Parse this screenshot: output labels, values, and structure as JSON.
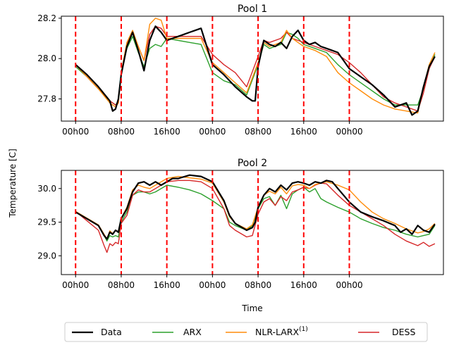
{
  "colors": {
    "Data": "#000000",
    "ARX": "#2ca02c",
    "NLR-LARX(1)": "#ff8c0a",
    "DESS": "#d62728",
    "vline": "#ff0000"
  },
  "shared": {
    "xlabel": "Time",
    "ylabel": "Temperature [C]",
    "x_ticks": [
      0,
      8,
      16,
      24,
      32,
      40,
      48
    ],
    "x_tick_labels": [
      "00h00",
      "08h00",
      "16h00",
      "00h00",
      "08h00",
      "16h00",
      "00h00"
    ],
    "x_range_hours": [
      -2.5,
      64.5
    ],
    "vlines_hours": [
      0,
      8,
      16,
      24,
      32,
      40,
      48
    ]
  },
  "legend": {
    "entries": [
      {
        "name": "Data",
        "sup": ""
      },
      {
        "name": "ARX",
        "sup": ""
      },
      {
        "name": "NLR-LARX",
        "sup": "(1)"
      },
      {
        "name": "DESS",
        "sup": ""
      }
    ]
  },
  "chart_data": [
    {
      "type": "line",
      "title": "Pool 1",
      "ylim": [
        27.69,
        28.21
      ],
      "y_ticks": [
        27.8,
        28.0,
        28.2
      ],
      "y_tick_labels": [
        "27.8",
        "28.0",
        "28.2"
      ],
      "series": [
        {
          "name": "Data",
          "x": [
            0,
            2,
            4,
            6,
            6.5,
            7,
            7.5,
            8,
            9,
            10,
            11,
            12,
            13,
            14,
            15,
            16,
            17,
            18,
            19,
            20,
            21,
            22,
            23,
            24,
            26,
            28,
            30,
            31,
            31.5,
            32,
            33,
            34,
            35,
            36,
            37,
            38,
            39,
            40,
            41,
            42,
            43,
            44,
            45,
            46,
            47,
            48,
            50,
            52,
            54,
            55,
            56,
            57,
            58,
            59,
            60,
            61,
            62,
            63
          ],
          "y": [
            27.97,
            27.92,
            27.86,
            27.79,
            27.74,
            27.75,
            27.8,
            27.92,
            28.06,
            28.13,
            28.04,
            27.94,
            28.09,
            28.16,
            28.13,
            28.09,
            28.1,
            28.11,
            28.12,
            28.13,
            28.14,
            28.15,
            28.06,
            27.97,
            27.92,
            27.86,
            27.81,
            27.79,
            27.79,
            27.96,
            28.09,
            28.07,
            28.06,
            28.08,
            28.05,
            28.11,
            28.14,
            28.09,
            28.07,
            28.08,
            28.06,
            28.05,
            28.04,
            28.03,
            27.99,
            27.95,
            27.91,
            27.87,
            27.82,
            27.79,
            27.76,
            27.77,
            27.78,
            27.72,
            27.74,
            27.86,
            27.96,
            28.01
          ]
        },
        {
          "name": "ARX",
          "x": [
            0,
            2,
            4,
            6,
            7,
            7.5,
            8,
            9,
            10,
            11,
            12,
            13,
            14,
            15,
            16,
            18,
            20,
            22,
            24,
            26,
            28,
            30,
            32,
            33,
            34,
            36,
            37,
            38,
            39,
            40,
            42,
            44,
            46,
            48,
            50,
            52,
            54,
            56,
            58,
            60,
            61,
            62,
            63
          ],
          "y": [
            27.96,
            27.91,
            27.85,
            27.79,
            27.77,
            27.79,
            27.93,
            28.05,
            28.11,
            28.03,
            27.96,
            28.05,
            28.07,
            28.06,
            28.1,
            28.09,
            28.08,
            28.07,
            27.93,
            27.89,
            27.87,
            27.82,
            27.97,
            28.07,
            28.05,
            28.07,
            28.13,
            28.12,
            28.1,
            28.07,
            28.05,
            28.03,
            27.97,
            27.92,
            27.88,
            27.84,
            27.8,
            27.77,
            27.77,
            27.77,
            27.85,
            27.95,
            28.02
          ]
        },
        {
          "name": "NLR-LARX(1)",
          "x": [
            0,
            2,
            4,
            6,
            7,
            7.5,
            8,
            9,
            10,
            11,
            12,
            13,
            14,
            15,
            16,
            18,
            20,
            22,
            24,
            26,
            28,
            30,
            32,
            33,
            34,
            36,
            37,
            38,
            39,
            40,
            42,
            44,
            46,
            48,
            50,
            52,
            54,
            56,
            58,
            60,
            61,
            62,
            63
          ],
          "y": [
            27.97,
            27.91,
            27.85,
            27.78,
            27.76,
            27.78,
            27.93,
            28.08,
            28.14,
            28.06,
            27.99,
            28.17,
            28.2,
            28.19,
            28.1,
            28.1,
            28.1,
            28.1,
            27.98,
            27.93,
            27.88,
            27.83,
            27.98,
            28.08,
            28.06,
            28.08,
            28.14,
            28.1,
            28.08,
            28.06,
            28.04,
            28.01,
            27.93,
            27.88,
            27.84,
            27.8,
            27.77,
            27.75,
            27.74,
            27.73,
            27.86,
            27.97,
            28.03
          ]
        },
        {
          "name": "DESS",
          "x": [
            0,
            2,
            4,
            6,
            7,
            7.5,
            8,
            9,
            10,
            11,
            12,
            13,
            14,
            15,
            16,
            18,
            20,
            22,
            24,
            26,
            28,
            30,
            32,
            33,
            34,
            36,
            37,
            38,
            39,
            40,
            42,
            44,
            46,
            48,
            50,
            52,
            54,
            56,
            58,
            60,
            61,
            62,
            63
          ],
          "y": [
            27.97,
            27.91,
            27.85,
            27.79,
            27.77,
            27.78,
            27.93,
            28.07,
            28.13,
            28.06,
            27.99,
            28.12,
            28.16,
            28.15,
            28.11,
            28.11,
            28.11,
            28.11,
            28.02,
            27.97,
            27.93,
            27.86,
            28.01,
            28.09,
            28.08,
            28.1,
            28.13,
            28.1,
            28.09,
            28.08,
            28.06,
            28.04,
            28.02,
            27.98,
            27.93,
            27.87,
            27.81,
            27.78,
            27.76,
            27.74,
            27.83,
            27.95,
            28.01
          ]
        }
      ]
    },
    {
      "type": "line",
      "title": "Pool 2",
      "ylim": [
        28.72,
        30.27
      ],
      "y_ticks": [
        29.0,
        29.5,
        30.0
      ],
      "y_tick_labels": [
        "29.0",
        "29.5",
        "30.0"
      ],
      "series": [
        {
          "name": "Data",
          "x": [
            0,
            2,
            4,
            5,
            5.5,
            6,
            6.5,
            7,
            7.5,
            8,
            9,
            10,
            11,
            12,
            13,
            14,
            15,
            16,
            17,
            18,
            20,
            22,
            24,
            26,
            27,
            28,
            30,
            31,
            31.5,
            32,
            33,
            34,
            35,
            36,
            37,
            38,
            39,
            40,
            41,
            42,
            43,
            44,
            45,
            46,
            47,
            48,
            50,
            52,
            54,
            56,
            57,
            58,
            59,
            60,
            61,
            62,
            63
          ],
          "y": [
            29.65,
            29.55,
            29.45,
            29.3,
            29.25,
            29.35,
            29.32,
            29.38,
            29.35,
            29.55,
            29.7,
            29.95,
            30.08,
            30.1,
            30.05,
            30.1,
            30.05,
            30.1,
            30.15,
            30.15,
            30.2,
            30.18,
            30.1,
            29.82,
            29.6,
            29.48,
            29.38,
            29.42,
            29.5,
            29.72,
            29.9,
            30.0,
            29.95,
            30.05,
            29.98,
            30.08,
            30.1,
            30.08,
            30.05,
            30.1,
            30.08,
            30.12,
            30.1,
            30.0,
            29.9,
            29.8,
            29.65,
            29.58,
            29.52,
            29.45,
            29.35,
            29.4,
            29.32,
            29.45,
            29.38,
            29.35,
            29.47
          ]
        },
        {
          "name": "ARX",
          "x": [
            0,
            2,
            4,
            5,
            5.5,
            6,
            6.5,
            7,
            7.5,
            8,
            9,
            10,
            11,
            12,
            13,
            14,
            16,
            18,
            20,
            22,
            24,
            26,
            27,
            28,
            30,
            31,
            32,
            33,
            34,
            35,
            36,
            37,
            38,
            39,
            40,
            41,
            42,
            43,
            44,
            46,
            48,
            50,
            52,
            54,
            56,
            58,
            60,
            61,
            62,
            63
          ],
          "y": [
            29.65,
            29.55,
            29.45,
            29.3,
            29.22,
            29.3,
            29.28,
            29.3,
            29.28,
            29.5,
            29.65,
            29.9,
            29.95,
            29.95,
            29.92,
            29.95,
            30.05,
            30.02,
            29.98,
            29.92,
            29.82,
            29.7,
            29.5,
            29.45,
            29.38,
            29.45,
            29.7,
            29.85,
            29.88,
            29.75,
            29.9,
            29.7,
            29.92,
            29.98,
            30.02,
            29.95,
            30.0,
            29.85,
            29.8,
            29.72,
            29.65,
            29.55,
            29.48,
            29.42,
            29.38,
            29.32,
            29.28,
            29.3,
            29.32,
            29.45
          ]
        },
        {
          "name": "NLR-LARX(1)",
          "x": [
            0,
            2,
            4,
            5,
            5.5,
            6,
            6.5,
            7,
            7.5,
            8,
            9,
            10,
            11,
            12,
            13,
            14,
            16,
            18,
            20,
            22,
            24,
            26,
            27,
            28,
            30,
            31,
            32,
            33,
            34,
            35,
            36,
            37,
            38,
            39,
            40,
            41,
            42,
            43,
            44,
            46,
            48,
            50,
            52,
            54,
            56,
            58,
            60,
            61,
            62,
            63
          ],
          "y": [
            29.66,
            29.56,
            29.46,
            29.32,
            29.25,
            29.37,
            29.33,
            29.38,
            29.36,
            29.56,
            29.72,
            29.98,
            30.05,
            30.02,
            30.0,
            30.05,
            30.15,
            30.18,
            30.16,
            30.14,
            30.08,
            29.8,
            29.58,
            29.48,
            29.4,
            29.46,
            29.72,
            29.9,
            29.96,
            29.92,
            30.02,
            29.92,
            30.04,
            30.06,
            30.05,
            30.0,
            30.06,
            30.08,
            30.1,
            30.05,
            29.98,
            29.8,
            29.65,
            29.55,
            29.48,
            29.4,
            29.34,
            29.36,
            29.4,
            29.48
          ]
        },
        {
          "name": "DESS",
          "x": [
            0,
            2,
            4,
            5,
            5.5,
            6,
            6.5,
            7,
            7.5,
            8,
            9,
            10,
            11,
            12,
            13,
            14,
            16,
            18,
            20,
            22,
            24,
            26,
            27,
            28,
            30,
            31,
            32,
            33,
            34,
            35,
            36,
            37,
            38,
            39,
            40,
            41,
            42,
            43,
            44,
            46,
            48,
            50,
            52,
            54,
            56,
            58,
            60,
            61,
            62,
            63
          ],
          "y": [
            29.66,
            29.52,
            29.38,
            29.15,
            29.05,
            29.18,
            29.15,
            29.2,
            29.18,
            29.48,
            29.6,
            29.9,
            29.98,
            29.95,
            29.95,
            30.0,
            30.1,
            30.12,
            30.12,
            30.1,
            30.0,
            29.7,
            29.45,
            29.38,
            29.28,
            29.3,
            29.62,
            29.8,
            29.85,
            29.75,
            29.88,
            29.82,
            29.95,
            29.98,
            30.02,
            30.0,
            30.05,
            30.08,
            30.07,
            29.9,
            29.75,
            29.65,
            29.55,
            29.45,
            29.32,
            29.22,
            29.15,
            29.2,
            29.14,
            29.18
          ]
        }
      ]
    }
  ]
}
